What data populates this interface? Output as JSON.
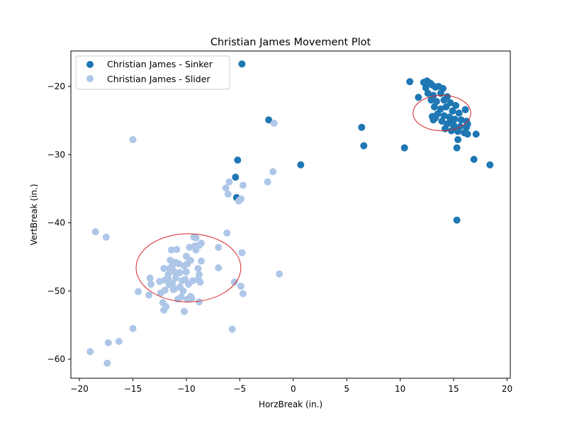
{
  "chart_data": {
    "type": "scatter",
    "title": "Christian James Movement Plot",
    "xlabel": "HorzBreak (in.)",
    "ylabel": "VertBreak (in.)",
    "xlim": [
      -20.8,
      20.3
    ],
    "ylim": [
      -62.8,
      -14.8
    ],
    "xticks": [
      -20,
      -15,
      -10,
      -5,
      0,
      5,
      10,
      15,
      20
    ],
    "yticks": [
      -60,
      -50,
      -40,
      -30,
      -20
    ],
    "grid": false,
    "legend_position": "top-left",
    "series": [
      {
        "name": "Christian James - Sinker",
        "color": "#1f77b4",
        "points": [
          [
            -4.8,
            -16.7
          ],
          [
            -2.3,
            -24.9
          ],
          [
            -5.2,
            -30.8
          ],
          [
            -5.4,
            -33.3
          ],
          [
            -5.3,
            -36.3
          ],
          [
            0.7,
            -31.5
          ],
          [
            6.4,
            -26.0
          ],
          [
            6.6,
            -28.7
          ],
          [
            10.4,
            -29.0
          ],
          [
            15.3,
            -39.6
          ],
          [
            16.9,
            -30.7
          ],
          [
            18.4,
            -31.5
          ],
          [
            17.1,
            -27.0
          ],
          [
            10.9,
            -19.3
          ],
          [
            12.2,
            -19.4
          ],
          [
            12.5,
            -19.2
          ],
          [
            12.8,
            -19.5
          ],
          [
            13.0,
            -19.8
          ],
          [
            12.4,
            -20.2
          ],
          [
            13.3,
            -20.1
          ],
          [
            13.6,
            -20.0
          ],
          [
            14.0,
            -20.3
          ],
          [
            12.6,
            -21.0
          ],
          [
            11.7,
            -21.6
          ],
          [
            13.1,
            -21.3
          ],
          [
            13.8,
            -21.0
          ],
          [
            14.4,
            -21.5
          ],
          [
            12.9,
            -22.0
          ],
          [
            13.4,
            -22.2
          ],
          [
            14.1,
            -22.0
          ],
          [
            14.7,
            -22.4
          ],
          [
            15.2,
            -22.8
          ],
          [
            13.2,
            -23.0
          ],
          [
            13.8,
            -23.3
          ],
          [
            14.3,
            -23.0
          ],
          [
            14.9,
            -23.6
          ],
          [
            15.5,
            -23.9
          ],
          [
            16.1,
            -23.4
          ],
          [
            13.5,
            -24.0
          ],
          [
            14.1,
            -24.3
          ],
          [
            14.6,
            -24.5
          ],
          [
            15.1,
            -24.8
          ],
          [
            15.7,
            -24.9
          ],
          [
            16.2,
            -25.1
          ],
          [
            13.3,
            -24.6
          ],
          [
            13.9,
            -25.1
          ],
          [
            14.4,
            -25.5
          ],
          [
            15.0,
            -25.7
          ],
          [
            15.6,
            -25.9
          ],
          [
            16.2,
            -26.0
          ],
          [
            16.3,
            -25.5
          ],
          [
            14.2,
            -26.2
          ],
          [
            14.8,
            -26.5
          ],
          [
            15.4,
            -26.6
          ],
          [
            16.0,
            -26.8
          ],
          [
            16.3,
            -27.0
          ],
          [
            15.4,
            -27.8
          ],
          [
            15.3,
            -29.0
          ],
          [
            13.0,
            -24.4
          ],
          [
            13.1,
            -24.9
          ],
          [
            14.7,
            -25.1
          ],
          [
            15.2,
            -26.1
          ]
        ]
      },
      {
        "name": "Christian James - Slider",
        "color": "#aec7e8",
        "points": [
          [
            -1.8,
            -25.4
          ],
          [
            -1.9,
            -32.5
          ],
          [
            -2.4,
            -34.0
          ],
          [
            -6.0,
            -34.0
          ],
          [
            -6.3,
            -34.9
          ],
          [
            -6.1,
            -35.8
          ],
          [
            -4.7,
            -34.5
          ],
          [
            -4.9,
            -36.5
          ],
          [
            -5.1,
            -36.8
          ],
          [
            -6.2,
            -41.5
          ],
          [
            -1.3,
            -47.5
          ],
          [
            -4.8,
            -44.4
          ],
          [
            -7.0,
            -43.6
          ],
          [
            -7.0,
            -46.6
          ],
          [
            -5.5,
            -48.7
          ],
          [
            -4.9,
            -49.3
          ],
          [
            -4.7,
            -50.4
          ],
          [
            -5.7,
            -55.6
          ],
          [
            -15.0,
            -55.5
          ],
          [
            -16.3,
            -57.4
          ],
          [
            -17.3,
            -57.6
          ],
          [
            -17.4,
            -60.6
          ],
          [
            -19.0,
            -58.9
          ],
          [
            -18.5,
            -41.3
          ],
          [
            -17.5,
            -42.1
          ],
          [
            -14.5,
            -50.1
          ],
          [
            -13.4,
            -48.1
          ],
          [
            -13.3,
            -49.0
          ],
          [
            -13.5,
            -50.6
          ],
          [
            -12.4,
            -50.3
          ],
          [
            -12.0,
            -49.9
          ],
          [
            -12.2,
            -51.7
          ],
          [
            -11.9,
            -52.3
          ],
          [
            -12.1,
            -52.8
          ],
          [
            -12.5,
            -48.6
          ],
          [
            -12.0,
            -48.4
          ],
          [
            -11.7,
            -47.6
          ],
          [
            -11.6,
            -46.7
          ],
          [
            -11.5,
            -45.5
          ],
          [
            -11.4,
            -44.0
          ],
          [
            -10.9,
            -43.9
          ],
          [
            -11.3,
            -46.3
          ],
          [
            -11.1,
            -47.2
          ],
          [
            -11.0,
            -48.1
          ],
          [
            -11.3,
            -48.9
          ],
          [
            -11.1,
            -49.7
          ],
          [
            -10.7,
            -46.0
          ],
          [
            -10.6,
            -47.3
          ],
          [
            -10.4,
            -48.5
          ],
          [
            -10.5,
            -50.9
          ],
          [
            -10.2,
            -53.0
          ],
          [
            -10.3,
            -50.0
          ],
          [
            -9.8,
            -49.0
          ],
          [
            -10.1,
            -48.3
          ],
          [
            -10.0,
            -47.2
          ],
          [
            -9.9,
            -46.0
          ],
          [
            -10.0,
            -44.9
          ],
          [
            -9.6,
            -45.5
          ],
          [
            -9.7,
            -43.6
          ],
          [
            -9.3,
            -42.1
          ],
          [
            -9.1,
            -42.2
          ],
          [
            -9.2,
            -43.4
          ],
          [
            -9.1,
            -44.0
          ],
          [
            -8.8,
            -43.3
          ],
          [
            -8.6,
            -43.0
          ],
          [
            -8.9,
            -46.7
          ],
          [
            -8.8,
            -47.6
          ],
          [
            -8.9,
            -48.3
          ],
          [
            -8.7,
            -48.7
          ],
          [
            -8.8,
            -51.6
          ],
          [
            -9.5,
            -51.1
          ],
          [
            -9.6,
            -50.8
          ],
          [
            -9.9,
            -51.2
          ],
          [
            -8.6,
            -45.6
          ],
          [
            -11.0,
            -45.8
          ],
          [
            -11.6,
            -49.1
          ],
          [
            -10.8,
            -51.2
          ],
          [
            -11.2,
            -49.8
          ],
          [
            -10.6,
            -49.4
          ],
          [
            -12.1,
            -46.7
          ],
          [
            -11.7,
            -48.3
          ],
          [
            -10.2,
            -46.3
          ],
          [
            -9.4,
            -48.5
          ],
          [
            -15.0,
            -27.8
          ]
        ]
      }
    ],
    "annotations": [
      {
        "type": "ellipse",
        "cx": 13.9,
        "cy": -23.9,
        "rx": 2.7,
        "ry": 2.6,
        "color": "#d62728"
      },
      {
        "type": "ellipse",
        "cx": -9.8,
        "cy": -46.6,
        "rx": 4.9,
        "ry": 5.0,
        "color": "#d62728"
      }
    ]
  }
}
